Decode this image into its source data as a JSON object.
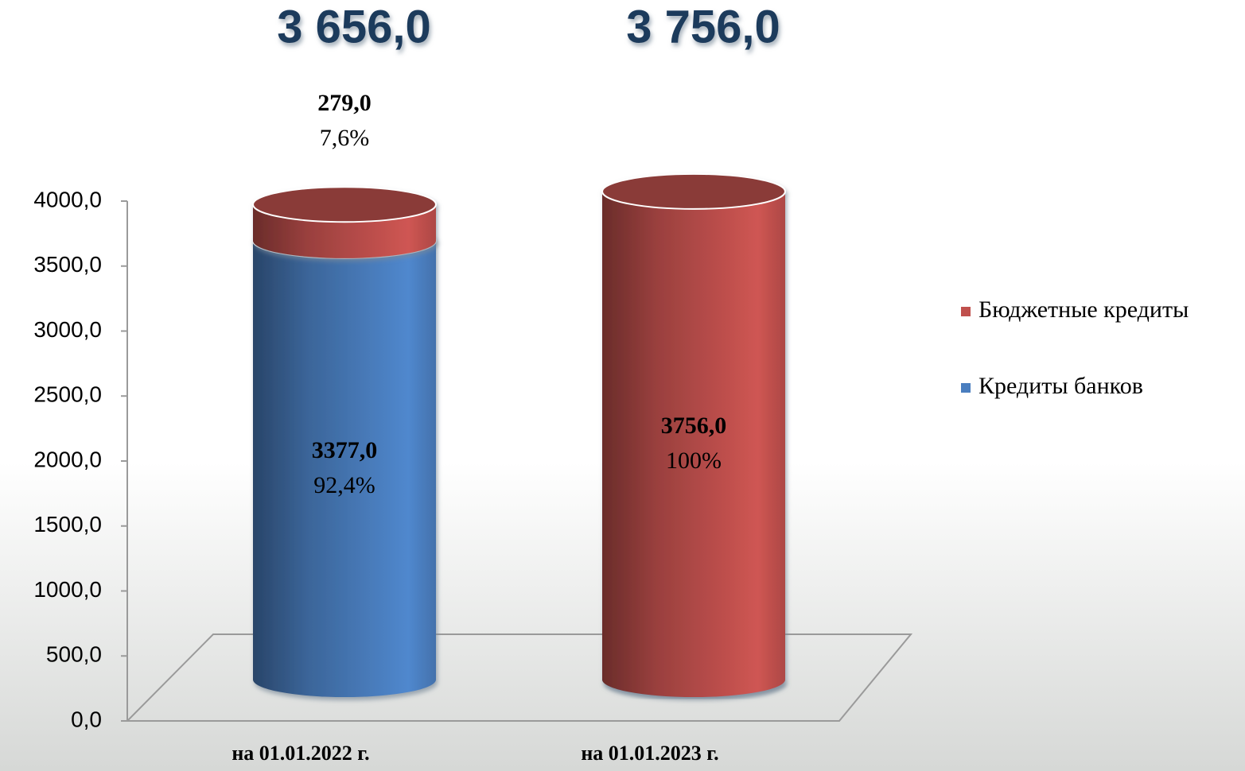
{
  "chart_data": {
    "type": "stacked-cylinder",
    "categories": [
      "на 01.01.2022 г.",
      "на 01.01.2023 г."
    ],
    "series": [
      {
        "name": "Кредиты банков",
        "color": "#4a7ebf",
        "values": [
          3377.0,
          0
        ],
        "value_labels": [
          "3377,0",
          null
        ],
        "shares": [
          92.4,
          null
        ],
        "share_labels": [
          "92,4%",
          null
        ]
      },
      {
        "name": "Бюджетные кредиты",
        "color": "#c0504d",
        "values": [
          279.0,
          3756.0
        ],
        "value_labels": [
          "279,0",
          "3756,0"
        ],
        "shares": [
          7.6,
          100
        ],
        "share_labels": [
          "7,6%",
          "100%"
        ]
      }
    ],
    "totals": [
      3656.0,
      3756.0
    ],
    "total_labels": [
      "3 656,0",
      "3 756,0"
    ],
    "ylim": [
      0,
      4000
    ],
    "yticks": [
      {
        "value": 0,
        "label": "0,0"
      },
      {
        "value": 500,
        "label": "500,0"
      },
      {
        "value": 1000,
        "label": "1000,0"
      },
      {
        "value": 1500,
        "label": "1500,0"
      },
      {
        "value": 2000,
        "label": "2000,0"
      },
      {
        "value": 2500,
        "label": "2500,0"
      },
      {
        "value": 3000,
        "label": "3000,0"
      },
      {
        "value": 3500,
        "label": "3500,0"
      },
      {
        "value": 4000,
        "label": "4000,0"
      }
    ],
    "legend": "right"
  }
}
